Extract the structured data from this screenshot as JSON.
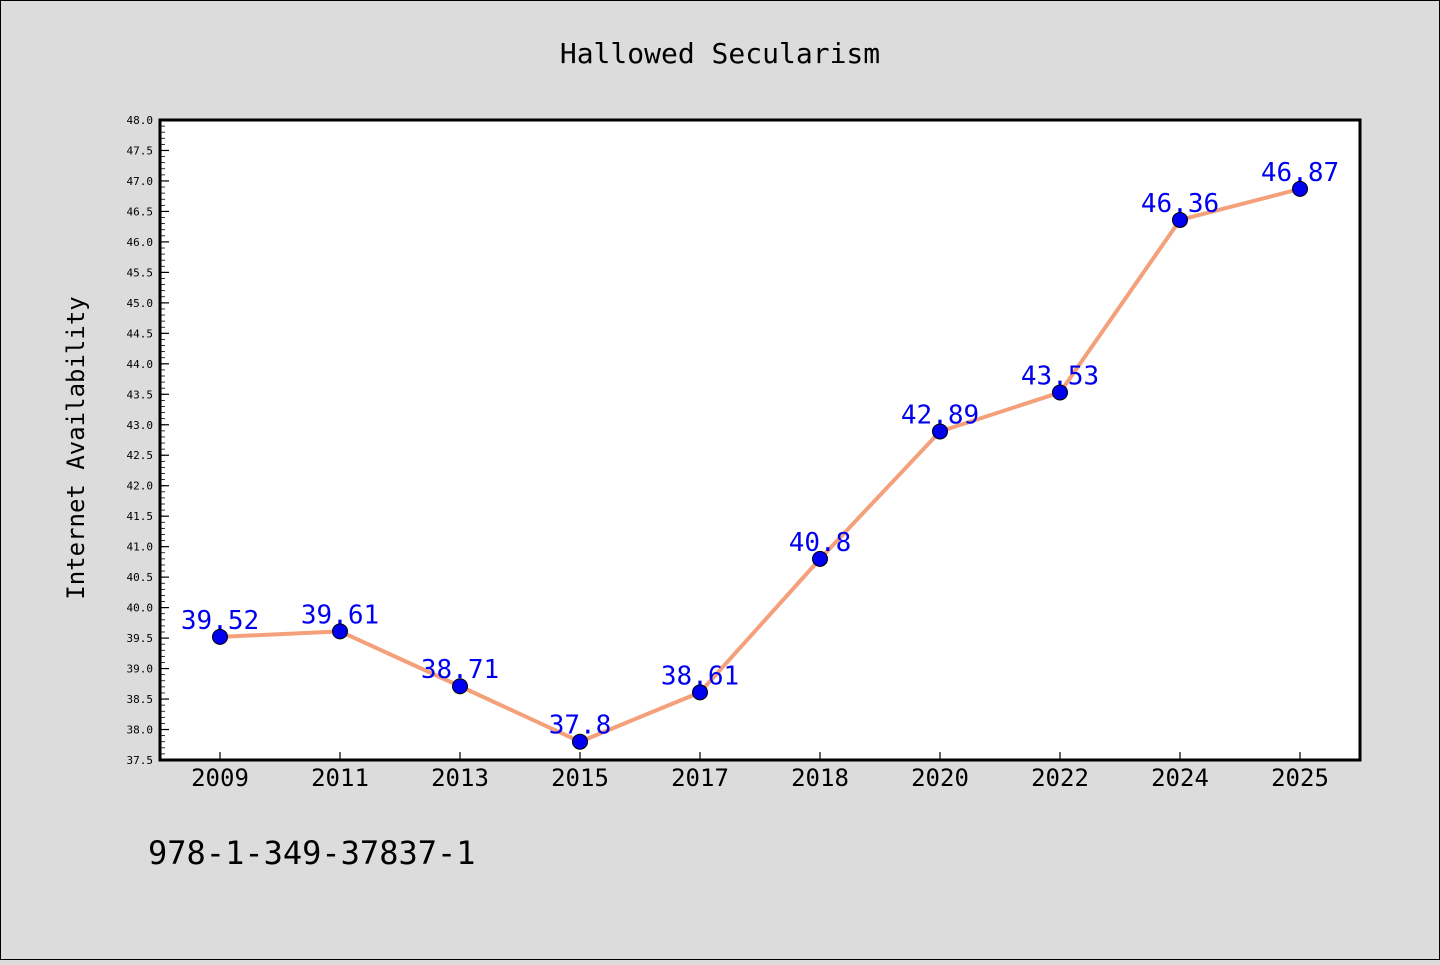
{
  "chart_data": {
    "type": "line",
    "title": "Hallowed Secularism",
    "xlabel": "",
    "ylabel": "Internet Availability",
    "categories": [
      "2009",
      "2011",
      "2013",
      "2015",
      "2017",
      "2018",
      "2020",
      "2022",
      "2024",
      "2025"
    ],
    "series": [
      {
        "values": [
          39.52,
          39.61,
          38.71,
          37.8,
          38.61,
          40.8,
          42.89,
          43.53,
          46.36,
          46.87
        ],
        "line_color": "#f4a07a",
        "marker_color": "#0000ee",
        "label_color": "#0000ee"
      }
    ],
    "data_labels": [
      "39.52",
      "39.61",
      "38.71",
      "37.8",
      "38.61",
      "40.8",
      "42.89",
      "43.53",
      "46.36",
      "46.87"
    ],
    "ylim": [
      37.5,
      48.0
    ],
    "yticks": [
      "37.5",
      "38.0",
      "38.5",
      "39.0",
      "39.5",
      "40.0",
      "40.5",
      "41.0",
      "41.5",
      "42.0",
      "42.5",
      "43.0",
      "43.5",
      "44.0",
      "44.5",
      "45.0",
      "45.5",
      "46.0",
      "46.5",
      "47.0",
      "47.5",
      "48.0"
    ],
    "grid": false,
    "legend": "none",
    "annotation": "978-1-349-37837-1",
    "background": "#dcdcdc",
    "plot_background": "#ffffff"
  }
}
